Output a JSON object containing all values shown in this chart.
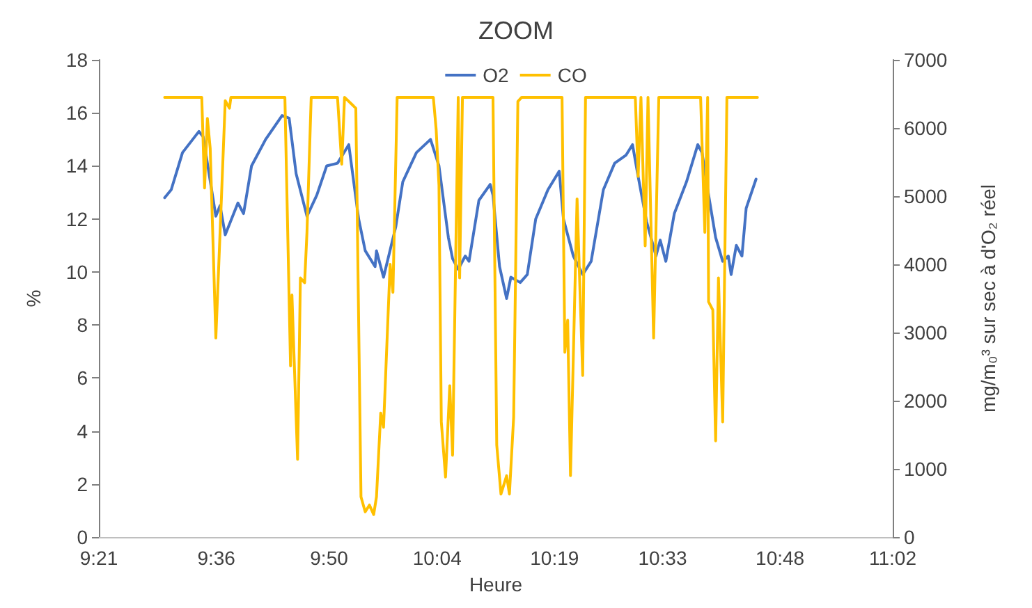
{
  "chart_data": {
    "type": "line",
    "title": "ZOOM",
    "xlabel": "Heure",
    "ylabel": "%",
    "y2label": "mg/m₀³ sur sec à d'O₂ réel",
    "xlim": [
      9.35,
      11.04
    ],
    "xticks": [
      {
        "value": 9.35,
        "label": "9:21"
      },
      {
        "value": 9.6,
        "label": "9:36"
      },
      {
        "value": 9.84,
        "label": "9:50"
      },
      {
        "value": 10.07,
        "label": "10:04"
      },
      {
        "value": 10.32,
        "label": "10:19"
      },
      {
        "value": 10.55,
        "label": "10:33"
      },
      {
        "value": 10.8,
        "label": "10:48"
      },
      {
        "value": 11.04,
        "label": "11:02"
      }
    ],
    "ylim": [
      0,
      18
    ],
    "yticks": [
      0,
      2,
      4,
      6,
      8,
      10,
      12,
      14,
      16,
      18
    ],
    "y2lim": [
      0,
      7000
    ],
    "y2ticks": [
      0,
      1000,
      2000,
      3000,
      4000,
      5000,
      6000,
      7000
    ],
    "grid": false,
    "legend": "top",
    "marker": "none",
    "line_style": "solid",
    "series": [
      {
        "name": "O2",
        "color": "#4472c4",
        "x": [
          9.49,
          9.504,
          9.528,
          9.563,
          9.572,
          9.599,
          9.608,
          9.619,
          9.646,
          9.658,
          9.675,
          9.705,
          9.74,
          9.755,
          9.77,
          9.793,
          9.814,
          9.835,
          9.858,
          9.882,
          9.903,
          9.917,
          9.938,
          9.941,
          9.956,
          9.982,
          9.997,
          10.026,
          10.056,
          10.074,
          10.094,
          10.103,
          10.115,
          10.13,
          10.138,
          10.159,
          10.183,
          10.189,
          10.203,
          10.218,
          10.227,
          10.247,
          10.262,
          10.28,
          10.306,
          10.33,
          10.339,
          10.36,
          10.38,
          10.398,
          10.424,
          10.448,
          10.472,
          10.486,
          10.498,
          10.516,
          10.536,
          10.545,
          10.557,
          10.575,
          10.601,
          10.625,
          10.634,
          10.648,
          10.663,
          10.678,
          10.69,
          10.696,
          10.707,
          10.719,
          10.728,
          10.749
        ],
        "values": [
          12.8,
          13.1,
          14.5,
          15.3,
          15.1,
          12.1,
          12.5,
          11.4,
          12.6,
          12.2,
          14.0,
          15.0,
          15.9,
          15.8,
          13.7,
          12.1,
          12.9,
          14.0,
          14.1,
          14.8,
          12.0,
          10.8,
          10.2,
          10.8,
          9.8,
          11.7,
          13.4,
          14.5,
          15.0,
          14.0,
          11.3,
          10.5,
          10.1,
          10.6,
          10.4,
          12.7,
          13.3,
          12.9,
          10.2,
          9.0,
          9.8,
          9.6,
          9.9,
          12.0,
          13.1,
          13.8,
          12.0,
          10.6,
          9.9,
          10.4,
          13.1,
          14.1,
          14.4,
          14.8,
          13.6,
          11.9,
          10.6,
          11.2,
          10.4,
          12.2,
          13.4,
          14.8,
          14.5,
          12.9,
          11.3,
          10.4,
          10.6,
          9.9,
          11.0,
          10.6,
          12.4,
          13.5
        ]
      },
      {
        "name": "CO",
        "color": "#ffc000",
        "axis": "y2",
        "x": [
          9.49,
          9.569,
          9.575,
          9.581,
          9.587,
          9.599,
          9.608,
          9.619,
          9.628,
          9.631,
          9.746,
          9.758,
          9.761,
          9.773,
          9.779,
          9.788,
          9.793,
          9.802,
          9.858,
          9.867,
          9.873,
          9.897,
          9.908,
          9.917,
          9.926,
          9.935,
          9.941,
          9.95,
          9.956,
          9.97,
          9.976,
          9.985,
          10.062,
          10.068,
          10.074,
          10.079,
          10.088,
          10.097,
          10.103,
          10.115,
          10.118,
          10.124,
          10.189,
          10.197,
          10.206,
          10.218,
          10.224,
          10.233,
          10.242,
          10.25,
          10.336,
          10.342,
          10.348,
          10.354,
          10.368,
          10.38,
          10.386,
          10.492,
          10.498,
          10.504,
          10.513,
          10.519,
          10.531,
          10.542,
          10.631,
          10.64,
          10.646,
          10.648,
          10.657,
          10.663,
          10.669,
          10.678,
          10.687,
          10.752
        ],
        "values": [
          6450,
          6450,
          5120,
          6140,
          5700,
          2920,
          4470,
          6400,
          6290,
          6450,
          6450,
          2510,
          3550,
          1140,
          3800,
          3730,
          4470,
          6450,
          6450,
          5470,
          6450,
          6290,
          590,
          370,
          470,
          330,
          590,
          1820,
          1610,
          4000,
          3590,
          6450,
          6450,
          5980,
          5160,
          1690,
          880,
          2220,
          1200,
          6450,
          3800,
          6450,
          6450,
          1350,
          630,
          900,
          630,
          1760,
          6390,
          6450,
          6450,
          2710,
          3180,
          900,
          4960,
          2370,
          6450,
          6450,
          5290,
          6450,
          4270,
          6450,
          2920,
          6450,
          6450,
          4470,
          6450,
          3450,
          3330,
          1410,
          3800,
          1690,
          6450,
          6450
        ]
      }
    ]
  }
}
